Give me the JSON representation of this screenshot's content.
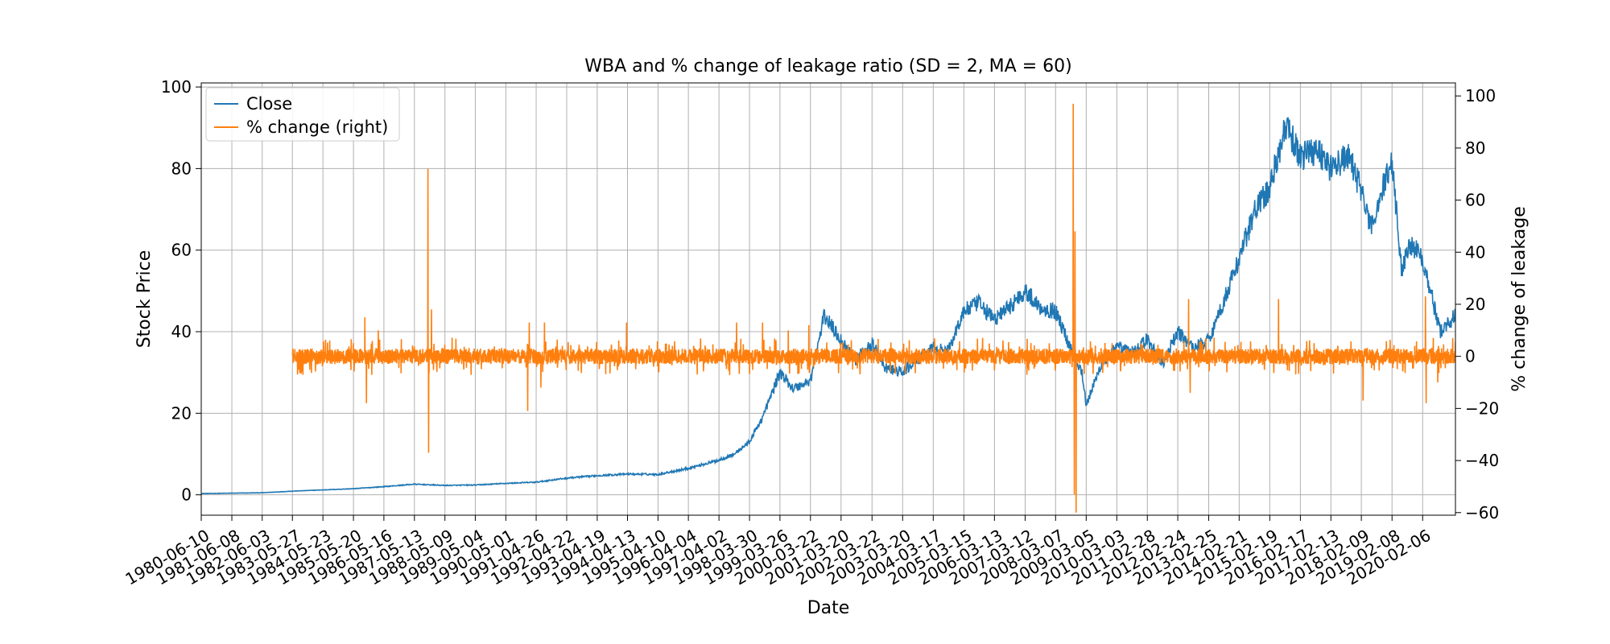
{
  "chart_data": {
    "type": "line",
    "title": "WBA and % change of leakage ratio (SD = 2, MA = 60)",
    "xlabel": "Date",
    "ylabel": "Stock Price",
    "ylabel_right": "% change of leakage",
    "ylim": [
      -5,
      101
    ],
    "ylim_right": [
      -61,
      105
    ],
    "xlim": [
      "1980-06-10",
      "2021-03-01"
    ],
    "yticks": [
      0,
      20,
      40,
      60,
      80,
      100
    ],
    "yticks_right": [
      -60,
      -40,
      -20,
      0,
      20,
      40,
      60,
      80,
      100
    ],
    "xticks": [
      "1980-06-10",
      "1981-06-08",
      "1982-06-03",
      "1983-05-27",
      "1984-05-23",
      "1985-05-20",
      "1986-05-16",
      "1987-05-13",
      "1988-05-09",
      "1989-05-04",
      "1990-05-01",
      "1991-04-26",
      "1992-04-22",
      "1993-04-19",
      "1994-04-13",
      "1995-04-10",
      "1996-04-04",
      "1997-04-02",
      "1998-03-30",
      "1999-03-26",
      "2000-03-22",
      "2001-03-20",
      "2002-03-22",
      "2003-03-20",
      "2004-03-17",
      "2005-03-15",
      "2006-03-13",
      "2007-03-12",
      "2008-03-07",
      "2009-03-05",
      "2010-03-03",
      "2011-02-28",
      "2012-02-24",
      "2013-02-25",
      "2014-02-21",
      "2015-02-19",
      "2016-02-17",
      "2017-02-13",
      "2018-02-09",
      "2019-02-08",
      "2020-02-06"
    ],
    "grid": true,
    "legend_position": "top-left",
    "series": [
      {
        "name": "Close",
        "axis": "left",
        "color": "#1f77b4",
        "x": [
          "1980-06-10",
          "1981-06-08",
          "1982-06-03",
          "1983-05-27",
          "1984-05-23",
          "1985-05-20",
          "1986-05-16",
          "1987-05-13",
          "1988-05-09",
          "1989-05-04",
          "1990-05-01",
          "1991-04-26",
          "1992-04-22",
          "1993-04-19",
          "1994-04-13",
          "1995-04-10",
          "1996-04-04",
          "1997-04-02",
          "1997-10-01",
          "1998-03-30",
          "1998-09-01",
          "1999-03-26",
          "1999-09-01",
          "2000-03-22",
          "2000-09-01",
          "2001-03-20",
          "2001-09-01",
          "2002-03-22",
          "2002-09-01",
          "2003-03-20",
          "2003-09-01",
          "2004-03-17",
          "2004-09-01",
          "2005-03-15",
          "2005-09-01",
          "2006-03-13",
          "2006-09-01",
          "2007-03-12",
          "2007-09-01",
          "2008-03-07",
          "2008-09-01",
          "2009-01-15",
          "2009-03-05",
          "2009-09-01",
          "2010-03-03",
          "2010-09-01",
          "2011-02-28",
          "2011-09-01",
          "2012-02-24",
          "2012-09-01",
          "2013-02-25",
          "2013-09-01",
          "2014-02-21",
          "2014-09-01",
          "2015-02-19",
          "2015-06-01",
          "2015-09-01",
          "2016-02-17",
          "2016-09-01",
          "2017-02-13",
          "2017-09-01",
          "2018-02-09",
          "2018-06-01",
          "2018-09-01",
          "2019-02-08",
          "2019-06-01",
          "2019-09-01",
          "2020-02-06",
          "2020-06-01",
          "2020-09-01",
          "2021-03-01"
        ],
        "values": [
          0.3,
          0.4,
          0.5,
          0.9,
          1.2,
          1.5,
          2.0,
          2.6,
          2.3,
          2.4,
          2.8,
          3.1,
          4.1,
          4.7,
          5.1,
          5.0,
          6.5,
          8.5,
          10.0,
          13.0,
          19.0,
          30.0,
          26.0,
          28.0,
          44.0,
          38.0,
          33.0,
          37.0,
          31.0,
          30.0,
          33.0,
          36.0,
          35.0,
          45.0,
          47.0,
          43.0,
          46.0,
          50.0,
          46.0,
          45.0,
          36.0,
          30.0,
          22.0,
          32.0,
          36.0,
          35.0,
          38.0,
          32.0,
          40.0,
          36.0,
          38.0,
          48.0,
          58.0,
          70.0,
          75.0,
          84.0,
          90.0,
          83.0,
          85.0,
          80.0,
          83.0,
          75.0,
          65.0,
          72.0,
          82.0,
          55.0,
          62.0,
          58.0,
          48.0,
          40.0,
          44.0
        ]
      },
      {
        "name": "% change (right)",
        "axis": "right",
        "color": "#ff7f0e",
        "start": "1983-05-27",
        "end": "2021-03-01",
        "baseline": 0,
        "noise_amplitude": 3,
        "spikes": [
          {
            "x": "1985-10-01",
            "value": 15
          },
          {
            "x": "1985-10-20",
            "value": -18
          },
          {
            "x": "1986-03-10",
            "value": 10
          },
          {
            "x": "1987-10-19",
            "value": 72
          },
          {
            "x": "1987-10-26",
            "value": -37
          },
          {
            "x": "1987-12-01",
            "value": 18
          },
          {
            "x": "1988-02-01",
            "value": -6
          },
          {
            "x": "1991-01-15",
            "value": -21
          },
          {
            "x": "1991-02-01",
            "value": 13
          },
          {
            "x": "1991-06-20",
            "value": -12
          },
          {
            "x": "1991-08-01",
            "value": 13
          },
          {
            "x": "1994-04-01",
            "value": 13
          },
          {
            "x": "1997-10-27",
            "value": 13
          },
          {
            "x": "1998-08-31",
            "value": 13
          },
          {
            "x": "1999-07-01",
            "value": 10
          },
          {
            "x": "2000-03-01",
            "value": 12
          },
          {
            "x": "2008-10-01",
            "value": 97
          },
          {
            "x": "2008-10-15",
            "value": -53
          },
          {
            "x": "2008-10-22",
            "value": 48
          },
          {
            "x": "2008-11-05",
            "value": -60
          },
          {
            "x": "2012-07-01",
            "value": 22
          },
          {
            "x": "2012-07-20",
            "value": -14
          },
          {
            "x": "2015-06-01",
            "value": 22
          },
          {
            "x": "2018-03-01",
            "value": -17
          },
          {
            "x": "2020-03-09",
            "value": 23
          },
          {
            "x": "2020-03-16",
            "value": -18
          },
          {
            "x": "2020-08-01",
            "value": -10
          }
        ]
      }
    ]
  }
}
